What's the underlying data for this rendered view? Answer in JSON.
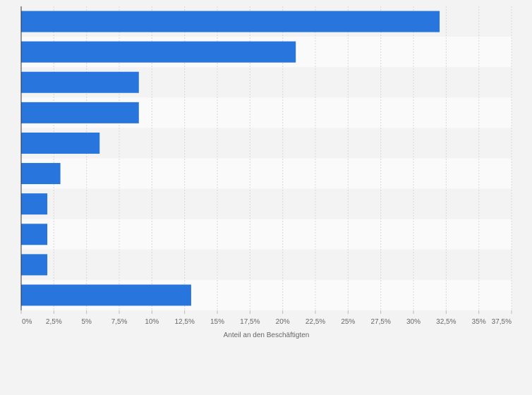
{
  "chart_data": {
    "type": "bar",
    "orientation": "horizontal",
    "categories": [
      "",
      "",
      "",
      "",
      "",
      "",
      "",
      "",
      "",
      ""
    ],
    "values": [
      32,
      21,
      9,
      9,
      6,
      3,
      2,
      2,
      2,
      13
    ],
    "title": "",
    "xlabel": "Anteil an den Beschäftigten",
    "ylabel": "",
    "xlim": [
      0,
      37.5
    ],
    "x_ticks": [
      0,
      2.5,
      5,
      7.5,
      10,
      12.5,
      15,
      17.5,
      20,
      22.5,
      25,
      27.5,
      30,
      32.5,
      35,
      37.5
    ],
    "x_tick_labels": [
      "0%",
      "2,5%",
      "5%",
      "7,5%",
      "10%",
      "12,5%",
      "15%",
      "17,5%",
      "20%",
      "22,5%",
      "25%",
      "27,5%",
      "30%",
      "32,5%",
      "35%",
      "37,5%"
    ],
    "grid": true,
    "legend": "none",
    "colors": {
      "bar": "#2876dd",
      "background": "#f3f3f3",
      "band_light": "#fafafa",
      "band_dark": "#f3f3f3",
      "grid": "#d8d8d8",
      "axis": "#333333",
      "text": "#666666"
    }
  }
}
